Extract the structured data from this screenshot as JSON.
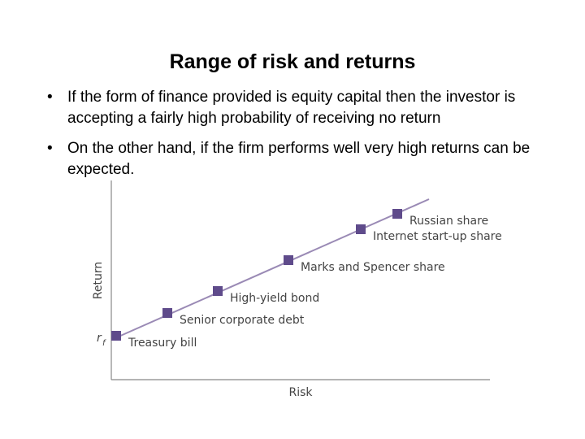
{
  "title": "Range of risk and returns",
  "bullets": [
    "If the form of finance provided is equity capital then the investor is accepting a fairly high probability of receiving no return",
    "On the other hand, if the firm performs well very high returns can be expected."
  ],
  "diagram": {
    "y_axis_label": "Return",
    "x_axis_label": "Risk",
    "baseline_label": "r",
    "baseline_subscript": "f",
    "points": [
      "Treasury bill",
      "Senior corporate debt",
      "High-yield bond",
      "Marks and Spencer share",
      "Internet start-up share",
      "Russian share"
    ]
  }
}
